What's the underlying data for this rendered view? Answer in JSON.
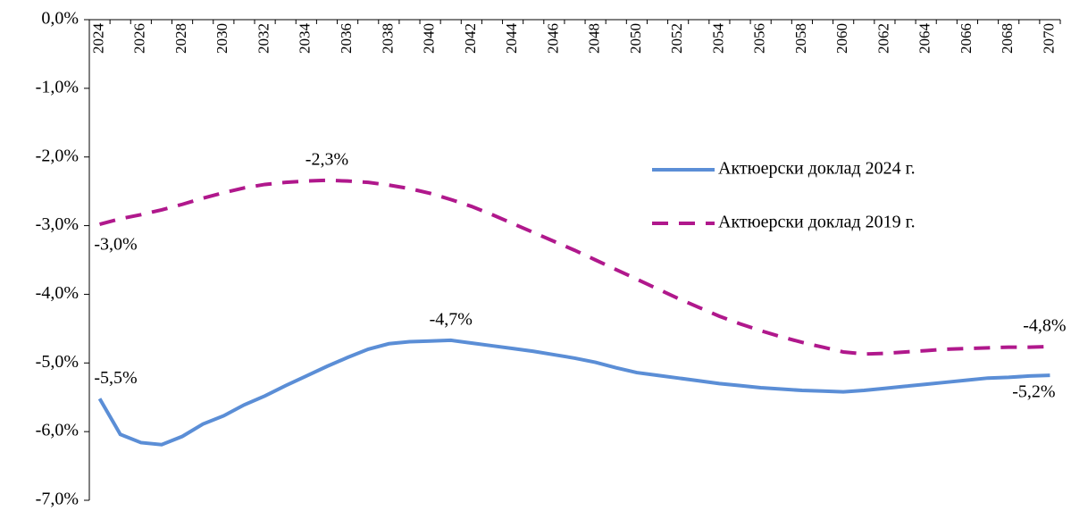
{
  "chart_data": {
    "type": "line",
    "categories": [
      2024,
      null,
      2026,
      null,
      2028,
      null,
      2030,
      null,
      2032,
      null,
      2034,
      null,
      2036,
      null,
      2038,
      null,
      2040,
      null,
      2042,
      null,
      2044,
      null,
      2046,
      null,
      2048,
      null,
      2050,
      null,
      2052,
      null,
      2054,
      null,
      2056,
      null,
      2058,
      null,
      2060,
      null,
      2062,
      null,
      2064,
      null,
      2066,
      null,
      2068,
      null,
      2070
    ],
    "ylim": [
      -7,
      0
    ],
    "yticks": [
      {
        "value": 0,
        "label": "0,0%"
      },
      {
        "value": -1,
        "label": "-1,0%"
      },
      {
        "value": -2,
        "label": "-2,0%"
      },
      {
        "value": -3,
        "label": "-3,0%"
      },
      {
        "value": -4,
        "label": "-4,0%"
      },
      {
        "value": -5,
        "label": "-5,0%"
      },
      {
        "value": -6,
        "label": "-6,0%"
      },
      {
        "value": -7,
        "label": "-7,0%"
      }
    ],
    "legend_position": "right",
    "series": [
      {
        "name": "Актюерски доклад 2024 г.",
        "color": "#5b8ed6",
        "dash": "solid",
        "values": [
          -5.52,
          -6.04,
          -6.16,
          -6.19,
          -6.07,
          -5.89,
          -5.77,
          -5.61,
          -5.48,
          -5.33,
          -5.19,
          -5.05,
          -4.92,
          -4.8,
          -4.72,
          -4.69,
          -4.68,
          -4.67,
          -4.71,
          -4.75,
          -4.79,
          -4.83,
          -4.88,
          -4.93,
          -4.99,
          -5.07,
          -5.14,
          -5.18,
          -5.22,
          -5.26,
          -5.3,
          -5.33,
          -5.36,
          -5.38,
          -5.4,
          -5.41,
          -5.42,
          -5.4,
          -5.37,
          -5.34,
          -5.31,
          -5.28,
          -5.25,
          -5.22,
          -5.21,
          -5.19,
          -5.18
        ],
        "value_labels": [
          "-5,5%",
          null,
          null,
          null,
          null,
          null,
          null,
          null,
          null,
          null,
          null,
          null,
          null,
          null,
          null,
          null,
          null,
          "-4,7%",
          null,
          null,
          null,
          null,
          null,
          null,
          null,
          null,
          null,
          null,
          null,
          null,
          null,
          null,
          null,
          null,
          null,
          null,
          null,
          null,
          null,
          null,
          null,
          null,
          null,
          null,
          null,
          null,
          "-5,2%"
        ]
      },
      {
        "name": "Актюерски доклад 2019 г.",
        "color": "#b0188c",
        "dash": "dashed",
        "values": [
          -2.98,
          -2.9,
          -2.84,
          -2.77,
          -2.69,
          -2.6,
          -2.52,
          -2.45,
          -2.4,
          -2.37,
          -2.35,
          -2.34,
          -2.35,
          -2.37,
          -2.41,
          -2.46,
          -2.53,
          -2.62,
          -2.72,
          -2.84,
          -2.97,
          -3.1,
          -3.23,
          -3.36,
          -3.5,
          -3.64,
          -3.78,
          -3.92,
          -4.06,
          -4.19,
          -4.32,
          -4.43,
          -4.53,
          -4.62,
          -4.7,
          -4.77,
          -4.84,
          -4.87,
          -4.86,
          -4.84,
          -4.82,
          -4.8,
          -4.79,
          -4.78,
          -4.77,
          -4.77,
          -4.76
        ],
        "value_labels": [
          "-3,0%",
          null,
          null,
          null,
          null,
          null,
          null,
          null,
          null,
          null,
          null,
          "-2,3%",
          null,
          null,
          null,
          null,
          null,
          null,
          null,
          null,
          null,
          null,
          null,
          null,
          null,
          null,
          null,
          null,
          null,
          null,
          null,
          null,
          null,
          null,
          null,
          null,
          null,
          null,
          null,
          null,
          null,
          null,
          null,
          null,
          null,
          null,
          "-4,8%"
        ]
      }
    ]
  }
}
